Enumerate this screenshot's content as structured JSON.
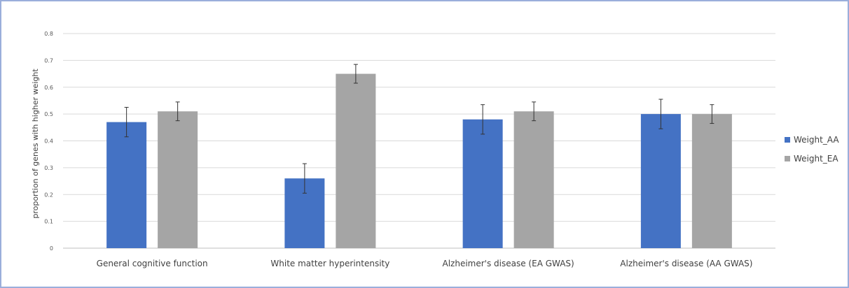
{
  "chart_data": {
    "type": "bar",
    "title": "",
    "xlabel": "",
    "ylabel": "proportion of genes with higher weight",
    "categories": [
      "General cognitive function",
      "White matter hyperintensity",
      "Alzheimer's disease (EA GWAS)",
      "Alzheimer's disease (AA GWAS)"
    ],
    "series": [
      {
        "name": "Weight_AA",
        "color": "#4472c4",
        "values": [
          0.47,
          0.26,
          0.48,
          0.5
        ],
        "error": [
          0.055,
          0.055,
          0.055,
          0.055
        ]
      },
      {
        "name": "Weight_EA",
        "color": "#a5a5a5",
        "values": [
          0.51,
          0.65,
          0.51,
          0.5
        ],
        "error": [
          0.035,
          0.035,
          0.035,
          0.035
        ]
      }
    ],
    "ylim": [
      0,
      0.8
    ],
    "yticks": [
      "0",
      "0.1",
      "0.2",
      "0.3",
      "0.4",
      "0.5",
      "0.6",
      "0.7",
      "0.8"
    ],
    "grid": true,
    "legend_position": "right"
  }
}
